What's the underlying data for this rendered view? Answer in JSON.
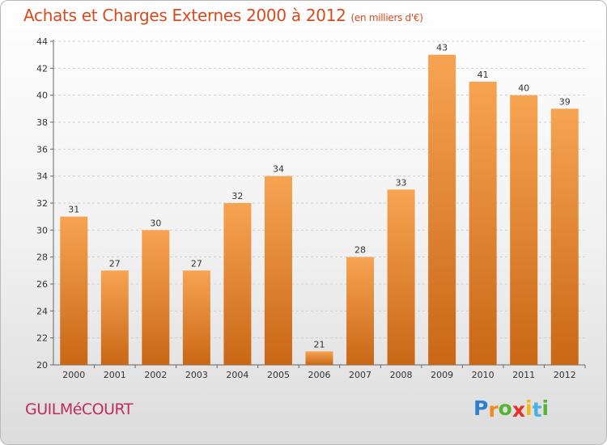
{
  "chart_data": {
    "type": "bar",
    "title": "Achats et Charges Externes 2000 à 2012",
    "subtitle": "(en milliers d'€)",
    "categories": [
      "2000",
      "2001",
      "2002",
      "2003",
      "2004",
      "2005",
      "2006",
      "2007",
      "2008",
      "2009",
      "2010",
      "2011",
      "2012"
    ],
    "values": [
      31,
      27,
      30,
      27,
      32,
      34,
      21,
      28,
      33,
      43,
      41,
      40,
      39
    ],
    "xlabel": "",
    "ylabel": "",
    "ylim": [
      20,
      44
    ],
    "yticks": [
      20,
      22,
      24,
      26,
      28,
      30,
      32,
      34,
      36,
      38,
      40,
      42,
      44
    ],
    "grid": true,
    "bar_color_top": "#f7a452",
    "bar_color_bottom": "#c96716"
  },
  "location_label": "GUILMéCOURT",
  "brand": {
    "letters": [
      "P",
      "r",
      "o",
      "x",
      "i",
      "t",
      "i"
    ],
    "colors": [
      "#2f7fd1",
      "#f08a1c",
      "#58b335",
      "#e5302a",
      "#f2b90f",
      "#4bb0e5",
      "#58b335"
    ]
  }
}
